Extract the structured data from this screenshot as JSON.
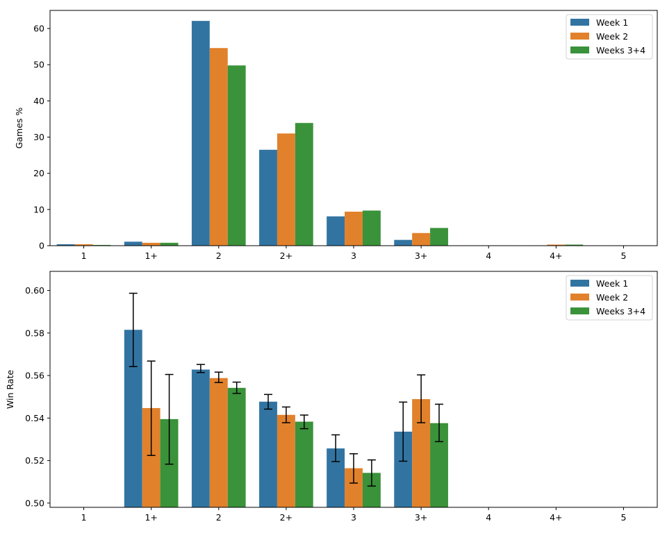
{
  "chart_data": [
    {
      "type": "bar",
      "title": "",
      "xlabel": "",
      "ylabel": "Games %",
      "categories": [
        "1",
        "1+",
        "2",
        "2+",
        "3",
        "3+",
        "4",
        "4+",
        "5"
      ],
      "ylim": [
        0,
        65
      ],
      "yticks": [
        0,
        10,
        20,
        30,
        40,
        50,
        60
      ],
      "legend": "top-right",
      "grid": false,
      "series": [
        {
          "name": "Week 1",
          "color": "#3274a1",
          "values": [
            0.4,
            1.1,
            62.1,
            26.5,
            8.1,
            1.6,
            0.1,
            0.1,
            0.0
          ]
        },
        {
          "name": "Week 2",
          "color": "#e1812c",
          "values": [
            0.4,
            0.8,
            54.6,
            31.0,
            9.4,
            3.5,
            0.1,
            0.3,
            0.1
          ]
        },
        {
          "name": "Weeks 3+4",
          "color": "#3a923a",
          "values": [
            0.2,
            0.8,
            49.8,
            33.9,
            9.7,
            4.9,
            0.1,
            0.3,
            0.1
          ]
        }
      ]
    },
    {
      "type": "bar",
      "title": "",
      "xlabel": "",
      "ylabel": "Win Rate",
      "categories": [
        "1",
        "1+",
        "2",
        "2+",
        "3",
        "3+",
        "4",
        "4+",
        "5"
      ],
      "ylim": [
        0.498,
        0.609
      ],
      "yticks": [
        "0.50",
        "0.52",
        "0.54",
        "0.56",
        "0.58",
        "0.60"
      ],
      "legend": "top-right",
      "grid": false,
      "series": [
        {
          "name": "Week 1",
          "color": "#3274a1",
          "values": [
            null,
            0.5815,
            0.5628,
            0.5477,
            0.5257,
            0.5336,
            null,
            null,
            null
          ],
          "error_low": [
            null,
            0.5642,
            0.5614,
            0.5442,
            0.5195,
            0.5197,
            null,
            null,
            null
          ],
          "error_high": [
            null,
            0.5987,
            0.5652,
            0.5511,
            0.5321,
            0.5475,
            null,
            null,
            null
          ]
        },
        {
          "name": "Week 2",
          "color": "#e1812c",
          "values": [
            null,
            0.5447,
            0.5588,
            0.5415,
            0.5164,
            0.5489,
            null,
            null,
            null
          ],
          "error_low": [
            null,
            0.5224,
            0.5567,
            0.5378,
            0.5094,
            0.5378,
            null,
            null,
            null
          ],
          "error_high": [
            null,
            0.5668,
            0.5616,
            0.5452,
            0.5232,
            0.5603,
            null,
            null,
            null
          ]
        },
        {
          "name": "Weeks 3+4",
          "color": "#3a923a",
          "values": [
            null,
            0.5395,
            0.5542,
            0.5383,
            0.5142,
            0.5376,
            null,
            null,
            null
          ],
          "error_low": [
            null,
            0.5183,
            0.5516,
            0.535,
            0.508,
            0.5289,
            null,
            null,
            null
          ],
          "error_high": [
            null,
            0.5605,
            0.5569,
            0.5414,
            0.5203,
            0.5465,
            null,
            null,
            null
          ]
        }
      ]
    }
  ]
}
